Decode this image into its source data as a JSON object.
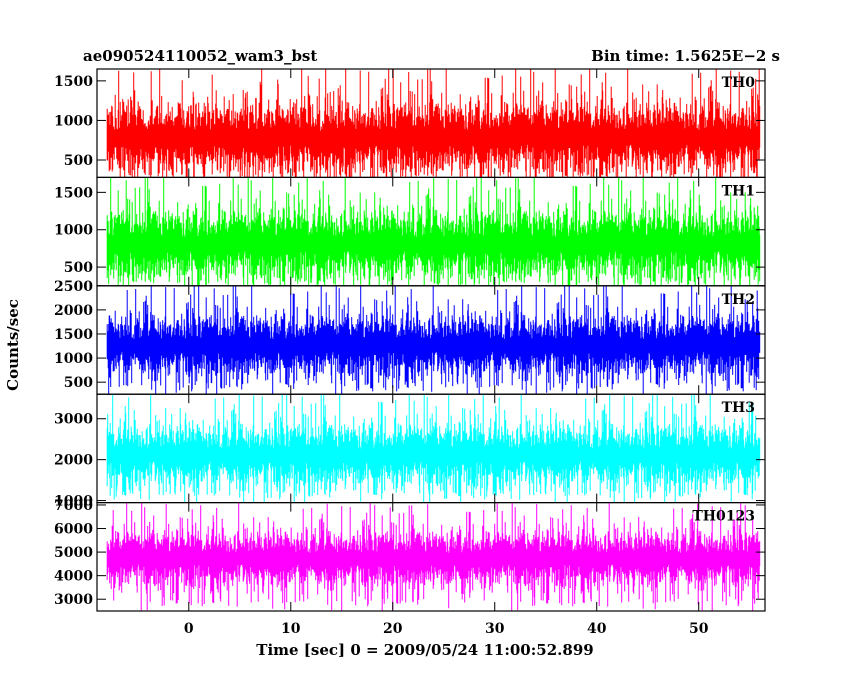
{
  "header": {
    "title": "ae090524110052_wam3_bst",
    "bin_time": "Bin time: 1.5625E−2 s"
  },
  "ylabel": "Counts/sec",
  "xlabel": "Time [sec] 0 = 2009/05/24 11:00:52.899",
  "chart_data": {
    "type": "line",
    "title": "ae090524110052_wam3_bst",
    "xlabel": "Time [sec] 0 = 2009/05/24 11:00:52.899",
    "ylabel": "Counts/sec",
    "xlim": [
      -9,
      56.5
    ],
    "data_x_range": [
      -8,
      56
    ],
    "x_ticks": [
      0,
      10,
      20,
      30,
      40,
      50
    ],
    "bin_time_s": 0.015625,
    "panels": [
      {
        "name": "TH0",
        "color": "#ff0000",
        "ylim": [
          280,
          1650
        ],
        "y_ticks": [
          500,
          1000,
          1500
        ],
        "floor": 180,
        "mean": 780,
        "peak": 1650
      },
      {
        "name": "TH1",
        "color": "#00ff00",
        "ylim": [
          250,
          1700
        ],
        "y_ticks": [
          500,
          1000,
          1500
        ],
        "floor": 180,
        "mean": 800,
        "peak": 1700
      },
      {
        "name": "TH2",
        "color": "#0000ff",
        "ylim": [
          250,
          2500
        ],
        "y_ticks": [
          500,
          1000,
          1500,
          2000,
          2500
        ],
        "floor": 200,
        "mean": 1250,
        "peak": 2500
      },
      {
        "name": "TH3",
        "color": "#00ffff",
        "ylim": [
          950,
          3600
        ],
        "y_ticks": [
          1000,
          2000,
          3000
        ],
        "floor": 900,
        "mean": 2100,
        "peak": 3600
      },
      {
        "name": "TH0123",
        "color": "#ff00ff",
        "ylim": [
          2500,
          7100
        ],
        "y_ticks": [
          3000,
          4000,
          5000,
          6000,
          7000
        ],
        "floor": 2500,
        "mean": 4700,
        "peak": 7000
      }
    ]
  }
}
